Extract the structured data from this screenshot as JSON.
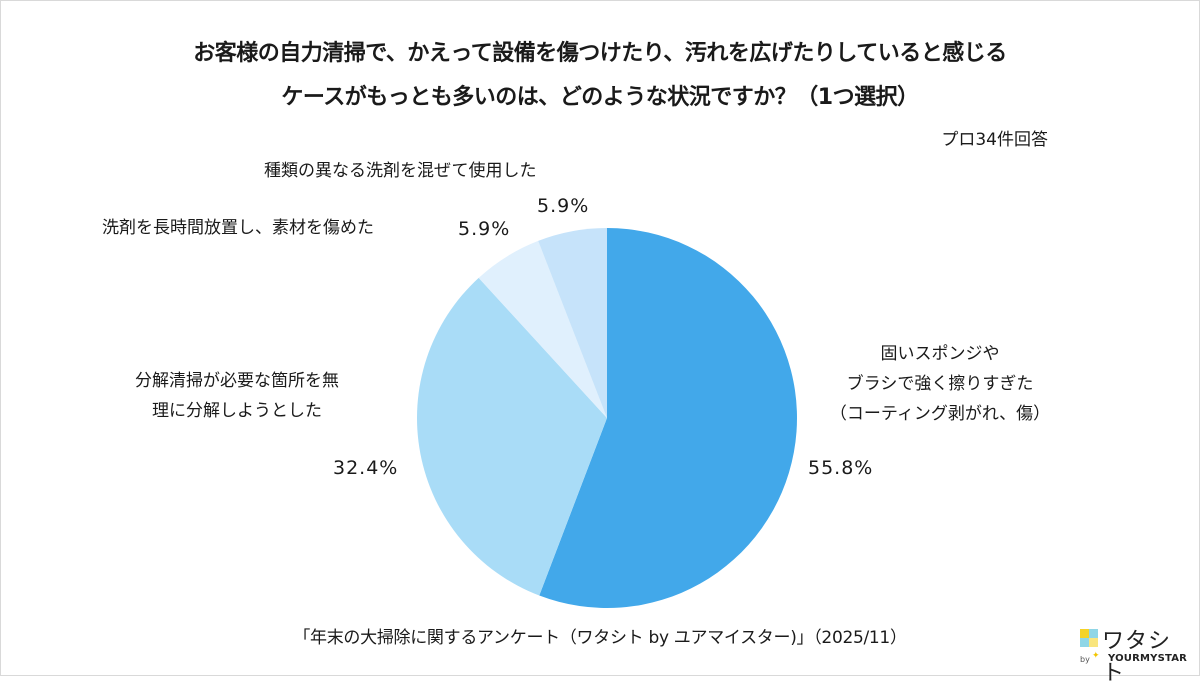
{
  "title": {
    "line1": "お客様の自力清掃で、かえって設備を傷つけたり、汚れを広げたりしていると感じる",
    "line2": "ケースがもっとも多いのは、どのような状況ですか？（1つ選択）"
  },
  "respondents": "プロ34件回答",
  "source": "「年末の大掃除に関するアンケート（ワタシト by ユアマイスター)」（2025/11）",
  "logo": {
    "name": "ワタシト",
    "by": "by",
    "brand": "YOURMYSTAR"
  },
  "colors": {
    "slice_0": "#42a8ea",
    "slice_1": "#a9dcf7",
    "slice_2": "#e0f0fd",
    "slice_3": "#c6e3fa",
    "logo_yellow": "#f5d327",
    "logo_cyan": "#8fd6e6"
  },
  "labels": {
    "slice_0": [
      "固いスポンジや",
      "ブラシで強く擦りすぎた",
      "（コーティング剥がれ、傷）"
    ],
    "slice_1": [
      "分解清掃が必要な箇所を無",
      "理に分解しようとした"
    ],
    "slice_2": "洗剤を長時間放置し、素材を傷めた",
    "slice_3": "種類の異なる洗剤を混ぜて使用した"
  },
  "pcts": {
    "slice_0": "55.8%",
    "slice_1": "32.4%",
    "slice_2": "5.9%",
    "slice_3": "5.9%"
  },
  "chart_data": {
    "type": "pie",
    "title": "お客様の自力清掃で、かえって設備を傷つけたり、汚れを広げたりしていると感じるケースがもっとも多いのは、どのような状況ですか？（1つ選択）",
    "subtitle": "プロ34件回答",
    "categories": [
      "固いスポンジやブラシで強く擦りすぎた（コーティング剥がれ、傷）",
      "分解清掃が必要な箇所を無理に分解しようとした",
      "洗剤を長時間放置し、素材を傷めた",
      "種類の異なる洗剤を混ぜて使用した"
    ],
    "values": [
      55.8,
      32.4,
      5.9,
      5.9
    ],
    "unit": "%",
    "start_angle": "12 o'clock",
    "direction": "clockwise",
    "colors": [
      "#42a8ea",
      "#a9dcf7",
      "#e0f0fd",
      "#c6e3fa"
    ],
    "source": "「年末の大掃除に関するアンケート（ワタシト by ユアマイスター)」（2025/11）"
  }
}
